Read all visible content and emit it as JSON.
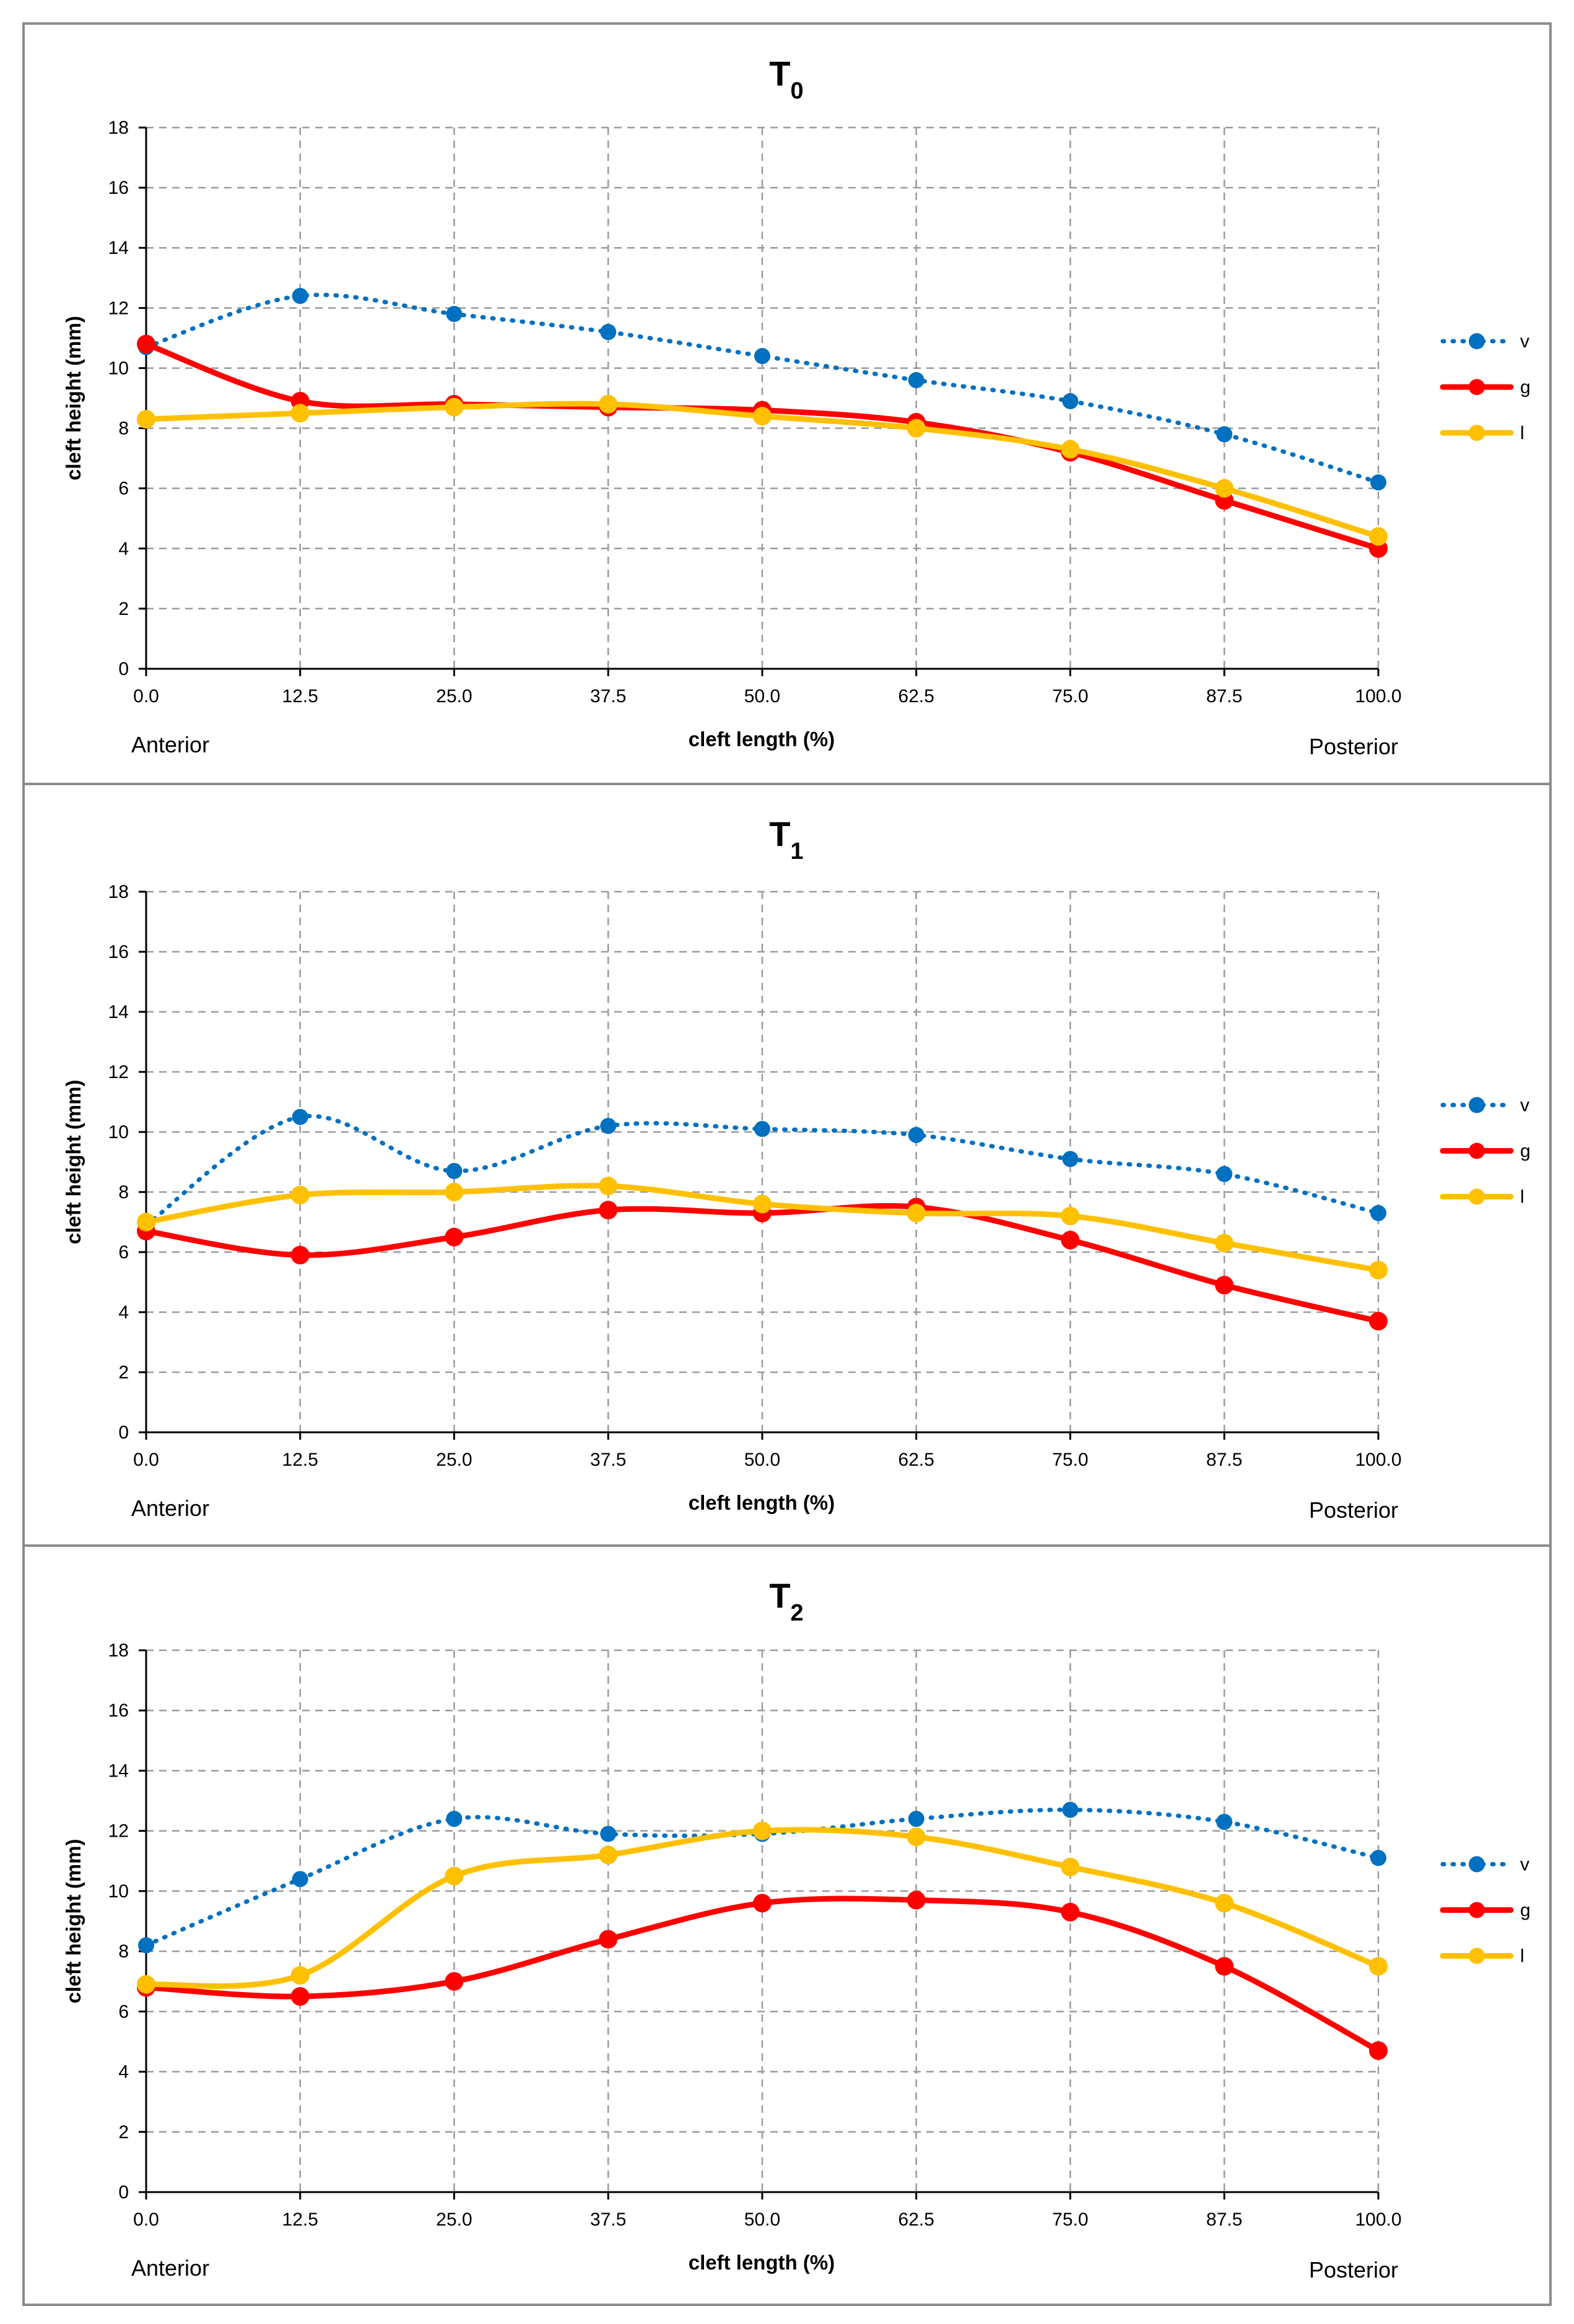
{
  "chart_data": [
    {
      "type": "line",
      "panel": "A",
      "title": "T",
      "title_subscript": "0",
      "xlabel": "cleft length (%)",
      "ylabel": "cleft height (mm)",
      "x_left_label": "Anterior",
      "x_right_label": "Posterior",
      "x": [
        "0.0",
        "12.5",
        "25.0",
        "37.5",
        "50.0",
        "62.5",
        "75.0",
        "87.5",
        "100.0"
      ],
      "y_ticks": [
        "0",
        "2",
        "4",
        "6",
        "8",
        "10",
        "12",
        "14",
        "16",
        "18"
      ],
      "ylim": [
        0,
        18
      ],
      "grid": true,
      "legend_position": "right",
      "series": [
        {
          "name": "v",
          "color": "#0070C0",
          "style": "dotted",
          "values": [
            10.7,
            12.4,
            11.8,
            11.2,
            10.4,
            9.6,
            8.9,
            7.8,
            6.2
          ]
        },
        {
          "name": "g",
          "color": "#FF0000",
          "style": "solid",
          "values": [
            10.8,
            8.9,
            8.8,
            8.7,
            8.6,
            8.2,
            7.2,
            5.6,
            4.0
          ]
        },
        {
          "name": "l",
          "color": "#FFC000",
          "style": "solid",
          "values": [
            8.3,
            8.5,
            8.7,
            8.8,
            8.4,
            8.0,
            7.3,
            6.0,
            4.4
          ]
        }
      ]
    },
    {
      "type": "line",
      "panel": "B",
      "title": "T",
      "title_subscript": "1",
      "xlabel": "cleft length (%)",
      "ylabel": "cleft height (mm)",
      "x_left_label": "Anterior",
      "x_right_label": "Posterior",
      "x": [
        "0.0",
        "12.5",
        "25.0",
        "37.5",
        "50.0",
        "62.5",
        "75.0",
        "87.5",
        "100.0"
      ],
      "y_ticks": [
        "0",
        "2",
        "4",
        "6",
        "8",
        "10",
        "12",
        "14",
        "16",
        "18"
      ],
      "ylim": [
        0,
        18
      ],
      "grid": true,
      "legend_position": "right",
      "series": [
        {
          "name": "v",
          "color": "#0070C0",
          "style": "dotted",
          "values": [
            6.9,
            10.5,
            8.7,
            10.2,
            10.1,
            9.9,
            9.1,
            8.6,
            7.3
          ]
        },
        {
          "name": "g",
          "color": "#FF0000",
          "style": "solid",
          "values": [
            6.7,
            5.9,
            6.5,
            7.4,
            7.3,
            7.5,
            6.4,
            4.9,
            3.7
          ]
        },
        {
          "name": "l",
          "color": "#FFC000",
          "style": "solid",
          "values": [
            7.0,
            7.9,
            8.0,
            8.2,
            7.6,
            7.3,
            7.2,
            6.3,
            5.4
          ]
        }
      ]
    },
    {
      "type": "line",
      "panel": "C",
      "title": "T",
      "title_subscript": "2",
      "xlabel": "cleft length (%)",
      "ylabel": "cleft height (mm)",
      "x_left_label": "Anterior",
      "x_right_label": "Posterior",
      "x": [
        "0.0",
        "12.5",
        "25.0",
        "37.5",
        "50.0",
        "62.5",
        "75.0",
        "87.5",
        "100.0"
      ],
      "y_ticks": [
        "0",
        "2",
        "4",
        "6",
        "8",
        "10",
        "12",
        "14",
        "16",
        "18"
      ],
      "ylim": [
        0,
        18
      ],
      "grid": true,
      "legend_position": "right",
      "series": [
        {
          "name": "v",
          "color": "#0070C0",
          "style": "dotted",
          "values": [
            8.2,
            10.4,
            12.4,
            11.9,
            11.9,
            12.4,
            12.7,
            12.3,
            11.1
          ]
        },
        {
          "name": "g",
          "color": "#FF0000",
          "style": "solid",
          "values": [
            6.8,
            6.5,
            7.0,
            8.4,
            9.6,
            9.7,
            9.3,
            7.5,
            4.7
          ]
        },
        {
          "name": "l",
          "color": "#FFC000",
          "style": "solid",
          "values": [
            6.9,
            7.2,
            10.5,
            11.2,
            12.0,
            11.8,
            10.8,
            9.6,
            7.5
          ]
        }
      ]
    }
  ]
}
